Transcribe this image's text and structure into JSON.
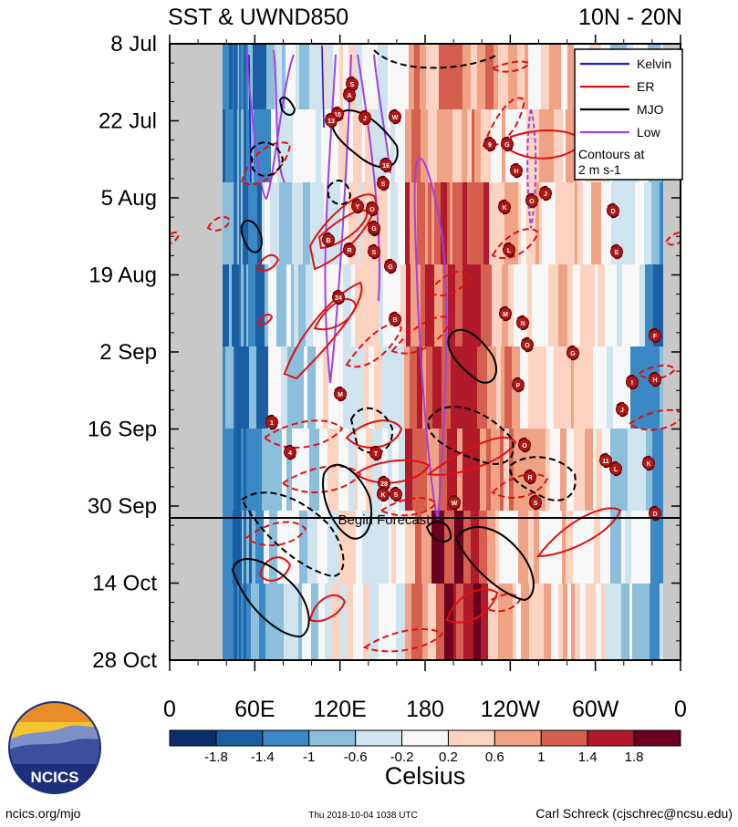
{
  "chart_data": {
    "type": "heatmap",
    "title_left": "SST & UWND850",
    "title_right": "10N - 20N",
    "y_ticks": [
      "8 Jul",
      "22 Jul",
      "5 Aug",
      "19 Aug",
      "2 Sep",
      "16 Sep",
      "30 Sep",
      "14 Oct",
      "28 Oct"
    ],
    "x_ticks": [
      "0",
      "60E",
      "120E",
      "180",
      "120W",
      "60W",
      "0"
    ],
    "xlim": [
      0,
      360
    ],
    "forecast_label": "Begin Forecast",
    "legend": {
      "entries": [
        {
          "label": "Kelvin",
          "color": "#2020d0"
        },
        {
          "label": "ER",
          "color": "#e01010"
        },
        {
          "label": "MJO",
          "color": "#000000"
        },
        {
          "label": "Low",
          "color": "#a040e0"
        }
      ],
      "note_line1": "Contours at",
      "note_line2": "2 m s-1"
    },
    "colorbar": {
      "colors": [
        "#0a2f6b",
        "#1a5fa3",
        "#3a88c4",
        "#8cbfdb",
        "#cfe4ef",
        "#f7f7f7",
        "#fbd3c0",
        "#f0a285",
        "#d45f4e",
        "#b01a2a",
        "#6b0020"
      ],
      "labels": [
        "-1.8",
        "-1.4",
        "-1",
        "-0.6",
        "-0.2",
        "0.2",
        "0.6",
        "1",
        "1.4",
        "1.8"
      ],
      "unit": "Celsius"
    },
    "storm_labels": [
      "S",
      "A",
      "10",
      "J",
      "W",
      "13",
      "16",
      "S",
      "Y",
      "B",
      "R",
      "S",
      "G",
      "24",
      "B",
      "M",
      "S",
      "O",
      "G",
      "9",
      "G",
      "H",
      "K",
      "O",
      "J",
      "D",
      "L",
      "E",
      "M",
      "N",
      "O",
      "G",
      "P",
      "F",
      "I",
      "H",
      "J",
      "1",
      "4",
      "T",
      "28",
      "K",
      "S",
      "R",
      "O",
      "11",
      "L",
      "K",
      "W",
      "S",
      "D"
    ]
  },
  "logo": {
    "text": "NCICS"
  },
  "footer": {
    "website": "ncics.org/mjo",
    "timestamp": "Thu 2018-10-04 1038 UTC",
    "author": "Carl Schreck (cjschrec@ncsu.edu)"
  }
}
